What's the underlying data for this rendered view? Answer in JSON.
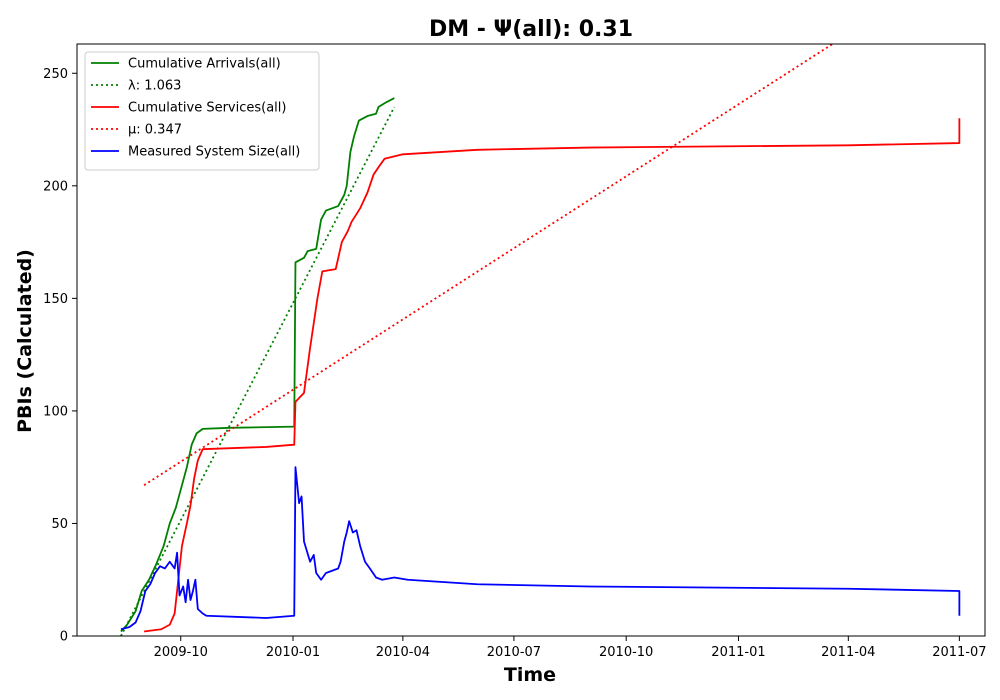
{
  "chart_data": {
    "type": "line",
    "title": "DM -  Ψ(all): 0.31",
    "xlabel": "Time",
    "ylabel": "PBIs (Calculated)",
    "xlim": [
      "2009-07-08",
      "2011-07-22"
    ],
    "ylim": [
      0,
      263
    ],
    "x_ticks": [
      {
        "date": "2009-10-01",
        "label": "2009-10"
      },
      {
        "date": "2010-01-01",
        "label": "2010-01"
      },
      {
        "date": "2010-04-01",
        "label": "2010-04"
      },
      {
        "date": "2010-07-01",
        "label": "2010-07"
      },
      {
        "date": "2010-10-01",
        "label": "2010-10"
      },
      {
        "date": "2011-01-01",
        "label": "2011-01"
      },
      {
        "date": "2011-04-01",
        "label": "2011-04"
      },
      {
        "date": "2011-07-01",
        "label": "2011-07"
      }
    ],
    "y_ticks": [
      0,
      50,
      100,
      150,
      200,
      250
    ],
    "grid": false,
    "legend_position": "top-left",
    "series": [
      {
        "name": "Cumulative Arrivals(all)",
        "color": "#008000",
        "style": "solid",
        "points": [
          [
            "2009-08-13",
            2
          ],
          [
            "2009-08-18",
            5
          ],
          [
            "2009-08-25",
            11
          ],
          [
            "2009-08-30",
            20
          ],
          [
            "2009-09-05",
            25
          ],
          [
            "2009-09-11",
            32
          ],
          [
            "2009-09-17",
            40
          ],
          [
            "2009-09-22",
            50
          ],
          [
            "2009-09-27",
            57
          ],
          [
            "2009-10-02",
            67
          ],
          [
            "2009-10-06",
            75
          ],
          [
            "2009-10-10",
            85
          ],
          [
            "2009-10-14",
            90
          ],
          [
            "2009-10-19",
            92
          ],
          [
            "2009-11-10",
            92.5
          ],
          [
            "2010-01-02",
            93
          ],
          [
            "2010-01-03",
            166
          ],
          [
            "2010-01-10",
            168
          ],
          [
            "2010-01-13",
            171
          ],
          [
            "2010-01-20",
            172
          ],
          [
            "2010-01-24",
            185
          ],
          [
            "2010-01-28",
            189
          ],
          [
            "2010-02-07",
            191
          ],
          [
            "2010-02-12",
            196
          ],
          [
            "2010-02-14",
            200
          ],
          [
            "2010-02-17",
            215
          ],
          [
            "2010-02-20",
            222
          ],
          [
            "2010-02-24",
            229
          ],
          [
            "2010-03-03",
            231
          ],
          [
            "2010-03-10",
            232
          ],
          [
            "2010-03-12",
            235
          ],
          [
            "2010-03-18",
            237
          ],
          [
            "2010-03-25",
            239
          ]
        ]
      },
      {
        "name": "λ: 1.063",
        "color": "#008000",
        "style": "dotted",
        "points": [
          [
            "2009-08-13",
            0
          ],
          [
            "2010-03-25",
            235
          ]
        ]
      },
      {
        "name": "Cumulative Services(all)",
        "color": "#ff0000",
        "style": "solid",
        "points": [
          [
            "2009-09-01",
            2
          ],
          [
            "2009-09-15",
            3
          ],
          [
            "2009-09-22",
            5
          ],
          [
            "2009-09-26",
            10
          ],
          [
            "2009-09-28",
            20
          ],
          [
            "2009-10-02",
            40
          ],
          [
            "2009-10-06",
            50
          ],
          [
            "2009-10-09",
            58
          ],
          [
            "2009-10-12",
            70
          ],
          [
            "2009-10-15",
            78
          ],
          [
            "2009-10-19",
            83
          ],
          [
            "2009-12-10",
            84
          ],
          [
            "2010-01-02",
            85
          ],
          [
            "2010-01-03",
            104
          ],
          [
            "2010-01-10",
            108
          ],
          [
            "2010-01-15",
            128
          ],
          [
            "2010-01-21",
            150
          ],
          [
            "2010-01-25",
            162
          ],
          [
            "2010-02-05",
            163
          ],
          [
            "2010-02-10",
            175
          ],
          [
            "2010-02-15",
            180
          ],
          [
            "2010-02-18",
            184
          ],
          [
            "2010-02-25",
            190
          ],
          [
            "2010-03-03",
            197
          ],
          [
            "2010-03-08",
            205
          ],
          [
            "2010-03-13",
            209
          ],
          [
            "2010-03-17",
            212
          ],
          [
            "2010-04-01",
            214
          ],
          [
            "2010-06-01",
            216
          ],
          [
            "2010-09-01",
            217
          ],
          [
            "2011-04-01",
            218
          ],
          [
            "2011-07-01",
            219
          ],
          [
            "2011-07-01",
            230
          ]
        ]
      },
      {
        "name": "μ: 0.347",
        "color": "#ff0000",
        "style": "dotted",
        "points": [
          [
            "2009-09-01",
            67
          ],
          [
            "2011-03-22",
            264
          ]
        ]
      },
      {
        "name": "Measured System Size(all)",
        "color": "#0000ff",
        "style": "solid",
        "points": [
          [
            "2009-08-13",
            3
          ],
          [
            "2009-08-20",
            4
          ],
          [
            "2009-08-25",
            6
          ],
          [
            "2009-08-29",
            11
          ],
          [
            "2009-09-02",
            20
          ],
          [
            "2009-09-06",
            23
          ],
          [
            "2009-09-10",
            28
          ],
          [
            "2009-09-14",
            31
          ],
          [
            "2009-09-18",
            30
          ],
          [
            "2009-09-22",
            33
          ],
          [
            "2009-09-26",
            30
          ],
          [
            "2009-09-28",
            37
          ],
          [
            "2009-09-30",
            18
          ],
          [
            "2009-10-03",
            22
          ],
          [
            "2009-10-05",
            15
          ],
          [
            "2009-10-07",
            25
          ],
          [
            "2009-10-09",
            16
          ],
          [
            "2009-10-11",
            20
          ],
          [
            "2009-10-13",
            25
          ],
          [
            "2009-10-15",
            12
          ],
          [
            "2009-10-19",
            10
          ],
          [
            "2009-10-22",
            9
          ],
          [
            "2009-12-10",
            8
          ],
          [
            "2010-01-02",
            9
          ],
          [
            "2010-01-03",
            75
          ],
          [
            "2010-01-06",
            59
          ],
          [
            "2010-01-08",
            62
          ],
          [
            "2010-01-10",
            42
          ],
          [
            "2010-01-15",
            33
          ],
          [
            "2010-01-18",
            36
          ],
          [
            "2010-01-20",
            28
          ],
          [
            "2010-01-24",
            25
          ],
          [
            "2010-01-28",
            28
          ],
          [
            "2010-02-07",
            30
          ],
          [
            "2010-02-09",
            33
          ],
          [
            "2010-02-12",
            42
          ],
          [
            "2010-02-14",
            46
          ],
          [
            "2010-02-16",
            51
          ],
          [
            "2010-02-19",
            46
          ],
          [
            "2010-02-22",
            47
          ],
          [
            "2010-02-25",
            40
          ],
          [
            "2010-03-01",
            33
          ],
          [
            "2010-03-05",
            30
          ],
          [
            "2010-03-10",
            26
          ],
          [
            "2010-03-15",
            25
          ],
          [
            "2010-03-25",
            26
          ],
          [
            "2010-04-05",
            25
          ],
          [
            "2010-06-01",
            23
          ],
          [
            "2010-09-01",
            22
          ],
          [
            "2011-04-01",
            21
          ],
          [
            "2011-07-01",
            20
          ],
          [
            "2011-07-01",
            9
          ]
        ]
      }
    ]
  }
}
